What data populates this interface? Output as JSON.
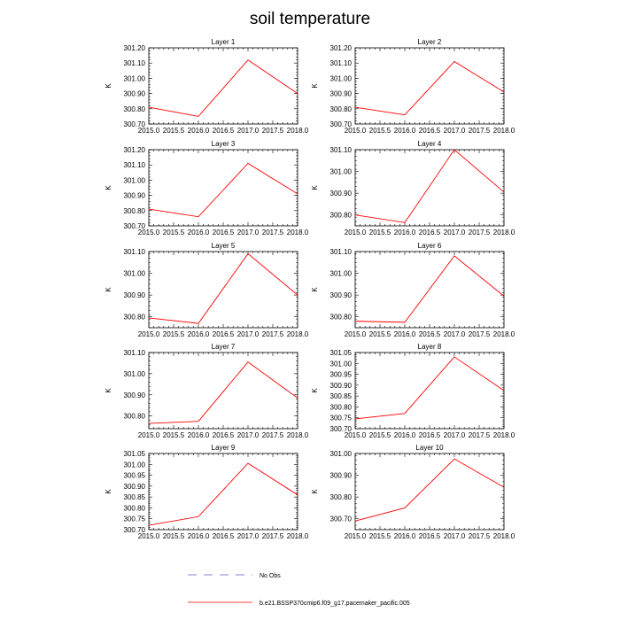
{
  "figure": {
    "title": "soil temperature",
    "legend": [
      {
        "label": "No Obs",
        "style": "dashed",
        "color": "#6a5acd"
      },
      {
        "label": "b.e21.BSSP370cmip6.f09_g17.pacemaker_pacific.005",
        "style": "solid",
        "color": "#ff0000"
      }
    ]
  },
  "chart_data": [
    {
      "type": "line",
      "title": "Layer 1",
      "xlabel": "",
      "ylabel": "K",
      "xlim": [
        2015.0,
        2018.0
      ],
      "ylim": [
        300.7,
        301.2
      ],
      "xticks": [
        "2015.0",
        "2015.5",
        "2016.0",
        "2016.5",
        "2017.0",
        "2017.5",
        "2018.0"
      ],
      "yticks": [
        "300.70",
        "300.80",
        "300.90",
        "301.00",
        "301.10",
        "301.20"
      ],
      "series": [
        {
          "name": "b.e21.BSSP370cmip6.f09_g17.pacemaker_pacific.005",
          "color": "#ff0000",
          "x": [
            2015,
            2016,
            2017,
            2018
          ],
          "y": [
            300.81,
            300.75,
            301.12,
            300.9
          ]
        }
      ]
    },
    {
      "type": "line",
      "title": "Layer 2",
      "xlabel": "",
      "ylabel": "K",
      "xlim": [
        2015.0,
        2018.0
      ],
      "ylim": [
        300.7,
        301.2
      ],
      "xticks": [
        "2015.0",
        "2015.5",
        "2016.0",
        "2016.5",
        "2017.0",
        "2017.5",
        "2018.0"
      ],
      "yticks": [
        "300.70",
        "300.80",
        "300.90",
        "301.00",
        "301.10",
        "301.20"
      ],
      "series": [
        {
          "name": "b.e21.BSSP370cmip6.f09_g17.pacemaker_pacific.005",
          "color": "#ff0000",
          "x": [
            2015,
            2016,
            2017,
            2018
          ],
          "y": [
            300.81,
            300.76,
            301.11,
            300.91
          ]
        }
      ]
    },
    {
      "type": "line",
      "title": "Layer 3",
      "xlabel": "",
      "ylabel": "K",
      "xlim": [
        2015.0,
        2018.0
      ],
      "ylim": [
        300.7,
        301.2
      ],
      "xticks": [
        "2015.0",
        "2015.5",
        "2016.0",
        "2016.5",
        "2017.0",
        "2017.5",
        "2018.0"
      ],
      "yticks": [
        "300.70",
        "300.80",
        "300.90",
        "301.00",
        "301.10",
        "301.20"
      ],
      "series": [
        {
          "name": "b.e21.BSSP370cmip6.f09_g17.pacemaker_pacific.005",
          "color": "#ff0000",
          "x": [
            2015,
            2016,
            2017,
            2018
          ],
          "y": [
            300.81,
            300.76,
            301.11,
            300.91
          ]
        }
      ]
    },
    {
      "type": "line",
      "title": "Layer 4",
      "xlabel": "",
      "ylabel": "K",
      "xlim": [
        2015.0,
        2018.0
      ],
      "ylim": [
        300.75,
        301.1
      ],
      "xticks": [
        "2015.0",
        "2015.5",
        "2016.0",
        "2016.5",
        "2017.0",
        "2017.5",
        "2018.0"
      ],
      "yticks": [
        "300.80",
        "300.90",
        "301.00",
        "301.10"
      ],
      "series": [
        {
          "name": "b.e21.BSSP370cmip6.f09_g17.pacemaker_pacific.005",
          "color": "#ff0000",
          "x": [
            2015,
            2016,
            2017,
            2018
          ],
          "y": [
            300.8,
            300.765,
            301.1,
            300.905
          ]
        }
      ]
    },
    {
      "type": "line",
      "title": "Layer 5",
      "xlabel": "",
      "ylabel": "K",
      "xlim": [
        2015.0,
        2018.0
      ],
      "ylim": [
        300.75,
        301.1
      ],
      "xticks": [
        "2015.0",
        "2015.5",
        "2016.0",
        "2016.5",
        "2017.0",
        "2017.5",
        "2018.0"
      ],
      "yticks": [
        "300.80",
        "300.90",
        "301.00",
        "301.10"
      ],
      "series": [
        {
          "name": "b.e21.BSSP370cmip6.f09_g17.pacemaker_pacific.005",
          "color": "#ff0000",
          "x": [
            2015,
            2016,
            2017,
            2018
          ],
          "y": [
            300.795,
            300.77,
            301.09,
            300.9
          ]
        }
      ]
    },
    {
      "type": "line",
      "title": "Layer 6",
      "xlabel": "",
      "ylabel": "K",
      "xlim": [
        2015.0,
        2018.0
      ],
      "ylim": [
        300.75,
        301.1
      ],
      "xticks": [
        "2015.0",
        "2015.5",
        "2016.0",
        "2016.5",
        "2017.0",
        "2017.5",
        "2018.0"
      ],
      "yticks": [
        "300.80",
        "300.90",
        "301.00",
        "301.10"
      ],
      "series": [
        {
          "name": "b.e21.BSSP370cmip6.f09_g17.pacemaker_pacific.005",
          "color": "#ff0000",
          "x": [
            2015,
            2016,
            2017,
            2018
          ],
          "y": [
            300.78,
            300.775,
            301.08,
            300.895
          ]
        }
      ]
    },
    {
      "type": "line",
      "title": "Layer 7",
      "xlabel": "",
      "ylabel": "K",
      "xlim": [
        2015.0,
        2018.0
      ],
      "ylim": [
        300.74,
        301.1
      ],
      "xticks": [
        "2015.0",
        "2015.5",
        "2016.0",
        "2016.5",
        "2017.0",
        "2017.5",
        "2018.0"
      ],
      "yticks": [
        "300.80",
        "300.90",
        "301.00",
        "301.10"
      ],
      "series": [
        {
          "name": "b.e21.BSSP370cmip6.f09_g17.pacemaker_pacific.005",
          "color": "#ff0000",
          "x": [
            2015,
            2016,
            2017,
            2018
          ],
          "y": [
            300.765,
            300.775,
            301.055,
            300.885
          ]
        }
      ]
    },
    {
      "type": "line",
      "title": "Layer 8",
      "xlabel": "",
      "ylabel": "K",
      "xlim": [
        2015.0,
        2018.0
      ],
      "ylim": [
        300.7,
        301.05
      ],
      "xticks": [
        "2015.0",
        "2015.5",
        "2016.0",
        "2016.5",
        "2017.0",
        "2017.5",
        "2018.0"
      ],
      "yticks": [
        "300.70",
        "300.75",
        "300.80",
        "300.85",
        "300.90",
        "300.95",
        "301.00",
        "301.05"
      ],
      "series": [
        {
          "name": "b.e21.BSSP370cmip6.f09_g17.pacemaker_pacific.005",
          "color": "#ff0000",
          "x": [
            2015,
            2016,
            2017,
            2018
          ],
          "y": [
            300.745,
            300.77,
            301.03,
            300.875
          ]
        }
      ]
    },
    {
      "type": "line",
      "title": "Layer 9",
      "xlabel": "",
      "ylabel": "K",
      "xlim": [
        2015.0,
        2018.0
      ],
      "ylim": [
        300.7,
        301.05
      ],
      "xticks": [
        "2015.0",
        "2015.5",
        "2016.0",
        "2016.5",
        "2017.0",
        "2017.5",
        "2018.0"
      ],
      "yticks": [
        "300.70",
        "300.75",
        "300.80",
        "300.85",
        "300.90",
        "300.95",
        "301.00",
        "301.05"
      ],
      "series": [
        {
          "name": "b.e21.BSSP370cmip6.f09_g17.pacemaker_pacific.005",
          "color": "#ff0000",
          "x": [
            2015,
            2016,
            2017,
            2018
          ],
          "y": [
            300.72,
            300.76,
            301.005,
            300.86
          ]
        }
      ]
    },
    {
      "type": "line",
      "title": "Layer 10",
      "xlabel": "",
      "ylabel": "K",
      "xlim": [
        2015.0,
        2018.0
      ],
      "ylim": [
        300.65,
        301.0
      ],
      "xticks": [
        "2015.0",
        "2015.5",
        "2016.0",
        "2016.5",
        "2017.0",
        "2017.5",
        "2018.0"
      ],
      "yticks": [
        "300.70",
        "300.80",
        "300.90",
        "301.00"
      ],
      "series": [
        {
          "name": "b.e21.BSSP370cmip6.f09_g17.pacemaker_pacific.005",
          "color": "#ff0000",
          "x": [
            2015,
            2016,
            2017,
            2018
          ],
          "y": [
            300.69,
            300.75,
            300.975,
            300.845
          ]
        }
      ]
    }
  ]
}
